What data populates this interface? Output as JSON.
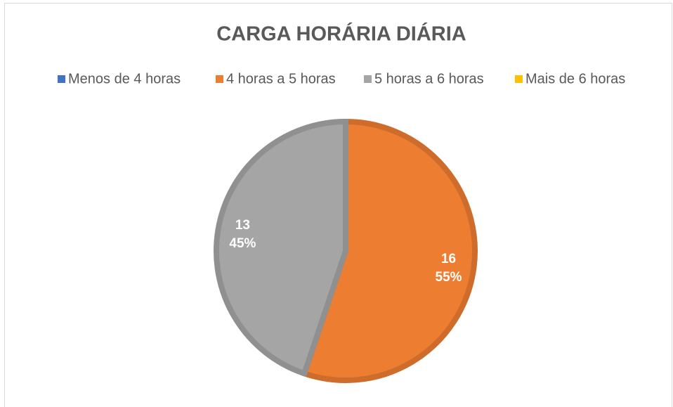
{
  "chart_data": {
    "type": "pie",
    "title": "CARGA HORÁRIA DIÁRIA",
    "categories": [
      "Menos de 4 horas",
      "4 horas a 5 horas",
      "5 horas a 6 horas",
      "Mais de 6 horas"
    ],
    "values": [
      0,
      16,
      13,
      0
    ],
    "percent_labels": [
      null,
      "55%",
      "45%",
      null
    ],
    "colors": [
      "#4472c4",
      "#ed7d31",
      "#a5a5a5",
      "#ffc000"
    ],
    "legend": "top"
  }
}
